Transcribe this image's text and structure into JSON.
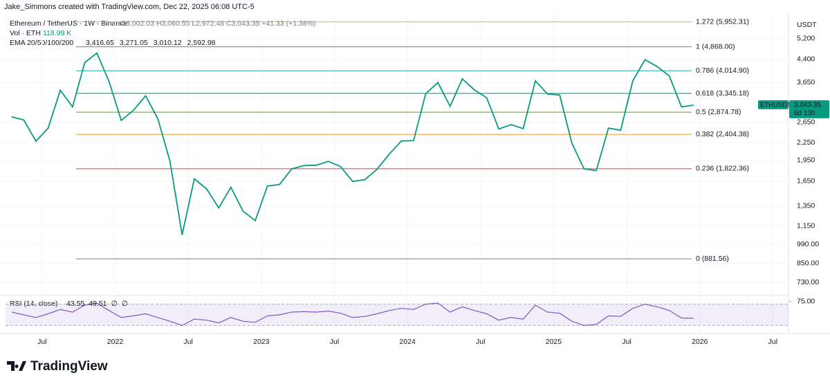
{
  "chart_data": {
    "type": "line",
    "attribution": "Jake_Simmons created with TradingView.com, Dec 22, 2025 06:08 UTC-5",
    "symbol": "Ethereum / TetherUS · 1W · Binance",
    "ohlc": "O3,002.03 H3,060.55 L2,972.48 C3,043.35 +41.33 (+1.38%)",
    "volume_label": "Vol · ETH",
    "volume_value": "118.99 K",
    "ema_label": "EMA 20/50/100/200",
    "ema_values": [
      {
        "label": "3,416.65",
        "color": "#e04a4a"
      },
      {
        "label": "3,271.05",
        "color": "#f29b30"
      },
      {
        "label": "3,010.12",
        "color": "#3fc8d8"
      },
      {
        "label": "2,592.98",
        "color": "#33339a"
      }
    ],
    "currency": "USDT",
    "x": [
      "2021-04",
      "2021-05",
      "2021-06",
      "2021-07",
      "2021-08",
      "2021-09",
      "2021-10",
      "2021-11",
      "2021-12",
      "2022-01",
      "2022-02",
      "2022-03",
      "2022-04",
      "2022-05",
      "2022-06",
      "2022-07",
      "2022-08",
      "2022-09",
      "2022-10",
      "2022-11",
      "2022-12",
      "2023-01",
      "2023-02",
      "2023-03",
      "2023-04",
      "2023-05",
      "2023-06",
      "2023-07",
      "2023-08",
      "2023-09",
      "2023-10",
      "2023-11",
      "2023-12",
      "2024-01",
      "2024-02",
      "2024-03",
      "2024-04",
      "2024-05",
      "2024-06",
      "2024-07",
      "2024-08",
      "2024-09",
      "2024-10",
      "2024-11",
      "2024-12",
      "2025-01",
      "2025-02",
      "2025-03",
      "2025-04",
      "2025-05",
      "2025-06",
      "2025-07",
      "2025-08",
      "2025-09",
      "2025-10",
      "2025-11",
      "2025-12"
    ],
    "series": [
      {
        "name": "ETHUSDT",
        "color": "#089981",
        "values": [
          2770,
          2700,
          2275,
          2530,
          3430,
          3000,
          4290,
          4630,
          3680,
          2690,
          2920,
          3280,
          2730,
          1940,
          1070,
          1680,
          1550,
          1330,
          1570,
          1295,
          1200,
          1585,
          1605,
          1820,
          1870,
          1875,
          1935,
          1855,
          1645,
          1670,
          1815,
          2050,
          2280,
          2285,
          3340,
          3650,
          3015,
          3760,
          3440,
          3230,
          2510,
          2600,
          2520,
          3700,
          3330,
          3300,
          2240,
          1820,
          1795,
          2530,
          2485,
          3700,
          4390,
          4150,
          3850,
          3000,
          3043.35
        ]
      }
    ],
    "last_price_label": "3,043.35",
    "countdown": "6d 13h",
    "xlim": [
      "2021-04",
      "2026-08"
    ],
    "xticks": [
      {
        "value": "2021-07",
        "label": "Jul"
      },
      {
        "value": "2022-01",
        "label": "2022"
      },
      {
        "value": "2022-07",
        "label": "Jul"
      },
      {
        "value": "2023-01",
        "label": "2023"
      },
      {
        "value": "2023-07",
        "label": "Jul"
      },
      {
        "value": "2024-01",
        "label": "2024"
      },
      {
        "value": "2024-07",
        "label": "Jul"
      },
      {
        "value": "2025-01",
        "label": "2025"
      },
      {
        "value": "2025-07",
        "label": "Jul"
      },
      {
        "value": "2026-01",
        "label": "2026"
      },
      {
        "value": "2026-07",
        "label": "Jul"
      }
    ],
    "log_scale": true,
    "ylim": [
      664,
      6530
    ],
    "yticks": [
      {
        "value": 5200,
        "label": "5,200"
      },
      {
        "value": 4400,
        "label": "4,400"
      },
      {
        "value": 3650,
        "label": "3,650"
      },
      {
        "value": 2650,
        "label": "2,650"
      },
      {
        "value": 2250,
        "label": "2,250"
      },
      {
        "value": 1950,
        "label": "1,950"
      },
      {
        "value": 1650,
        "label": "1,650"
      },
      {
        "value": 1350,
        "label": "1,350"
      },
      {
        "value": 1150,
        "label": "1,150"
      },
      {
        "value": 990,
        "label": "990.00"
      },
      {
        "value": 850,
        "label": "850.00"
      },
      {
        "value": 730,
        "label": "730.00"
      }
    ],
    "fib_levels": [
      {
        "value": 5952.31,
        "label": "1.272 (5,952.31)",
        "color": "#e8a838"
      },
      {
        "value": 4868.0,
        "label": "1 (4,868.00)",
        "color": "#787b86"
      },
      {
        "value": 4014.9,
        "label": "0.786 (4,014.90)",
        "color": "#22a9b8"
      },
      {
        "value": 3345.18,
        "label": "0.618 (3,345.18)",
        "color": "#0d8a76"
      },
      {
        "value": 2874.78,
        "label": "0.5 (2,874.78)",
        "color": "#5b9a3c"
      },
      {
        "value": 2404.38,
        "label": "0.382 (2,404.38)",
        "color": "#f29b30"
      },
      {
        "value": 1822.36,
        "label": "0.236 (1,822.36)",
        "color": "#d33f49"
      },
      {
        "value": 881.56,
        "label": "0 (881.56)",
        "color": "#787b86"
      }
    ],
    "rsi": {
      "label": "RSI (14, close)",
      "value_texts": [
        {
          "text": "43.55",
          "color": "#7e57c2"
        },
        {
          "text": "49.51",
          "color": "#f5c842"
        },
        {
          "text": "∅",
          "color": "#787b86"
        },
        {
          "text": "∅",
          "color": "#787b86"
        }
      ],
      "ylim": [
        15,
        85
      ],
      "yticks": [
        {
          "value": 75,
          "label": "75.00"
        }
      ],
      "band": [
        30,
        70
      ],
      "color": "#7e57c2",
      "values": [
        55,
        50,
        45,
        52,
        60,
        55,
        68,
        72,
        58,
        45,
        48,
        52,
        45,
        38,
        30,
        42,
        40,
        35,
        45,
        38,
        36,
        48,
        50,
        55,
        56,
        55,
        57,
        53,
        45,
        47,
        52,
        58,
        62,
        60,
        70,
        72,
        55,
        65,
        58,
        52,
        40,
        45,
        42,
        68,
        55,
        53,
        38,
        30,
        32,
        48,
        47,
        62,
        70,
        65,
        58,
        44,
        43.55
      ]
    },
    "brand": "TradingView"
  }
}
